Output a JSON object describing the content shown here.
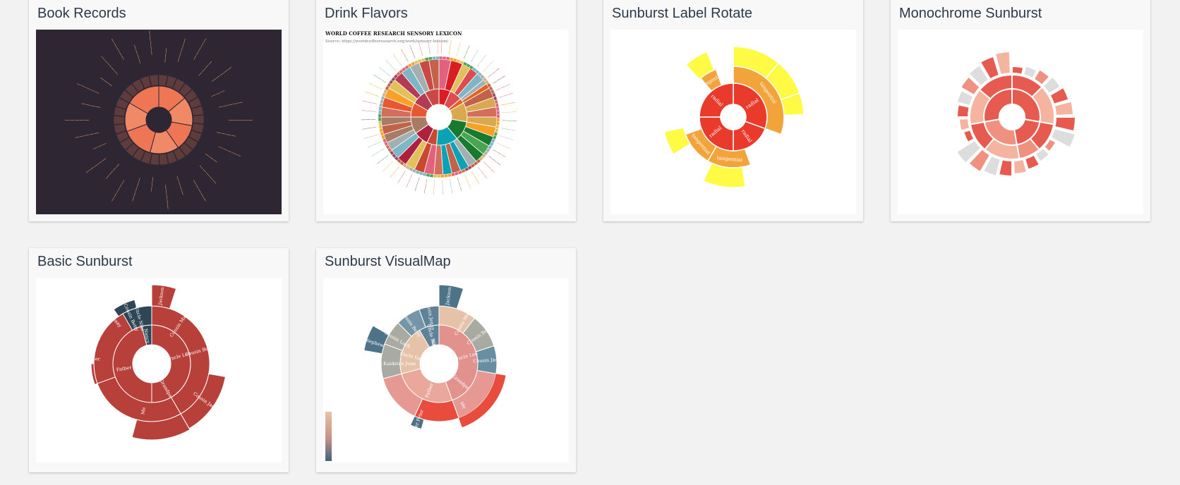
{
  "cards": [
    {
      "title": "Book Records",
      "theme": "dark"
    },
    {
      "title": "Drink Flavors"
    },
    {
      "title": "Sunburst Label Rotate"
    },
    {
      "title": "Monochrome Sunburst"
    },
    {
      "title": "Basic Sunburst"
    },
    {
      "title": "Sunburst VisualMap"
    }
  ],
  "drink": {
    "header": "WORLD COFFEE RESEARCH SENSORY LEXICON",
    "source": "Source: https://worldcoffeeresearch.org/work/sensory-lexicon/"
  },
  "labelRotate": {
    "inner": [
      "radial",
      "radial",
      "radial",
      "radial"
    ],
    "mid": [
      "tangential",
      "tangential",
      "tangential",
      "tangential"
    ]
  },
  "basic": {
    "names": [
      "Jackson",
      "Cousin Mary",
      "Cousin Ben",
      "Cousin Jack",
      "Uncle Leo",
      "Grandpa",
      "Father",
      "Brother Peter",
      "Me",
      "Nancy",
      "Uncle Nike",
      "Cousin Betty",
      "Cousin Jenny"
    ]
  },
  "visualmap": {
    "names": [
      "Jackson",
      "Cousin Mary",
      "Cousin Ben",
      "Cousin Jack",
      "Uncle Leo",
      "Grandpa",
      "Father",
      "Brother Peter",
      "Me",
      "Nephew",
      "Cousin Luck",
      "Uncle Dan",
      "Cousin Kaidsten Juno",
      "Uncle Nike",
      "Cousin Betty",
      "Cousin Jenny",
      "Nancy"
    ]
  },
  "colors": {
    "bookBg": "#2e2733",
    "bookOrange": "#ef7a5a",
    "red": "#e93a2c",
    "orange": "#f2a33a",
    "yellow": "#fffb44",
    "mono": "#e65a4f",
    "basicRed": "#b7403a",
    "basicDark": "#2f4656",
    "vmLight": "#e6c2a8",
    "vmDark": "#4d7389"
  }
}
